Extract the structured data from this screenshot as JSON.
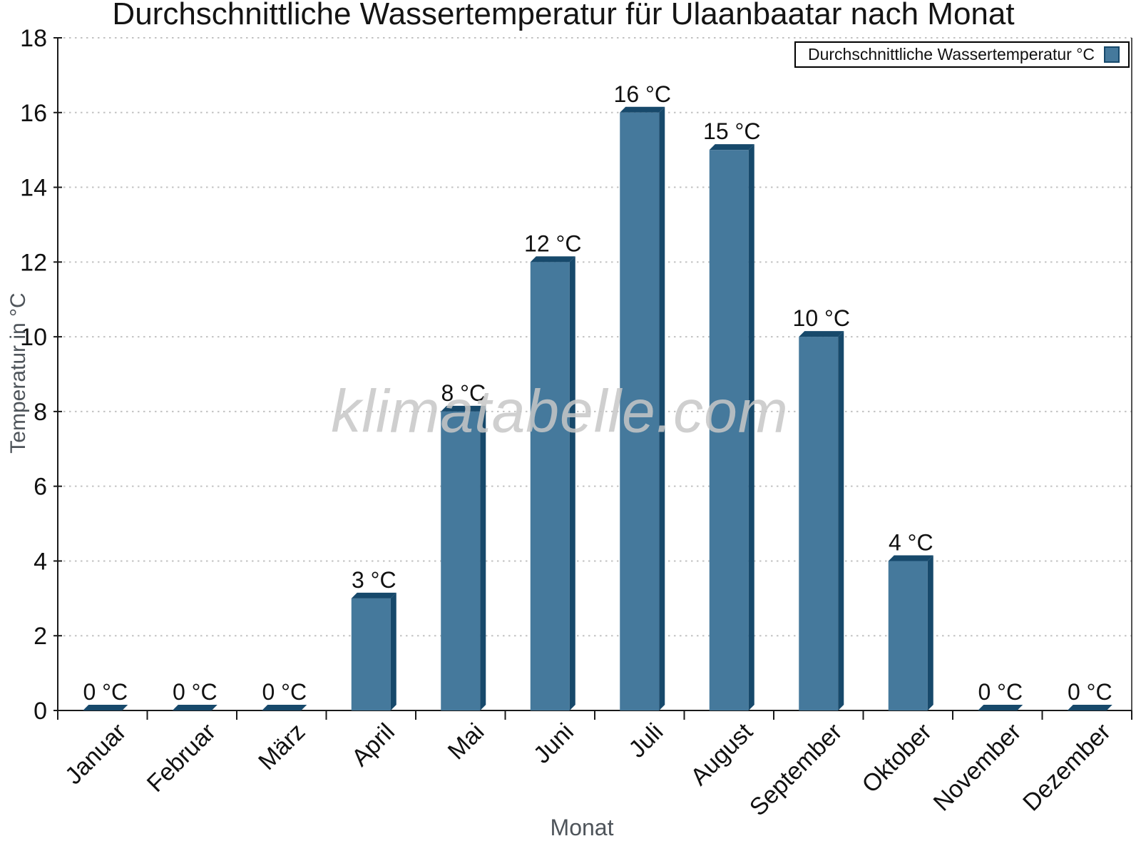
{
  "chart_data": {
    "type": "bar",
    "title": "Durchschnittliche Wassertemperatur für Ulaanbaatar nach Monat",
    "xlabel": "Monat",
    "ylabel": "Temperatur in °C",
    "legend": "Durchschnittliche Wassertemperatur °C",
    "legend_position": "top-right",
    "watermark": "klimatabelle.com",
    "categories": [
      "Januar",
      "Februar",
      "März",
      "April",
      "Mai",
      "Juni",
      "Juli",
      "August",
      "September",
      "Oktober",
      "November",
      "Dezember"
    ],
    "values": [
      0,
      0,
      0,
      3,
      8,
      12,
      16,
      15,
      10,
      4,
      0,
      0
    ],
    "data_labels": [
      "0 °C",
      "0 °C",
      "0 °C",
      "3 °C",
      "8 °C",
      "12 °C",
      "16 °C",
      "15 °C",
      "10 °C",
      "4 °C",
      "0 °C",
      "0 °C"
    ],
    "ylim": [
      0,
      18
    ],
    "ytick_step": 2,
    "ytick_labels": [
      "0",
      "2",
      "4",
      "6",
      "8",
      "10",
      "12",
      "14",
      "16",
      "18"
    ],
    "grid": "dotted-horizontal",
    "colors": {
      "bar_face": "#45799C",
      "bar_dark": "#17496B",
      "grid": "#c2c2c2",
      "axis": "#1a1a1a",
      "text": "#111111",
      "axis_title": "#4e545a",
      "watermark": "#c7c7c7",
      "background": "#ffffff"
    }
  }
}
